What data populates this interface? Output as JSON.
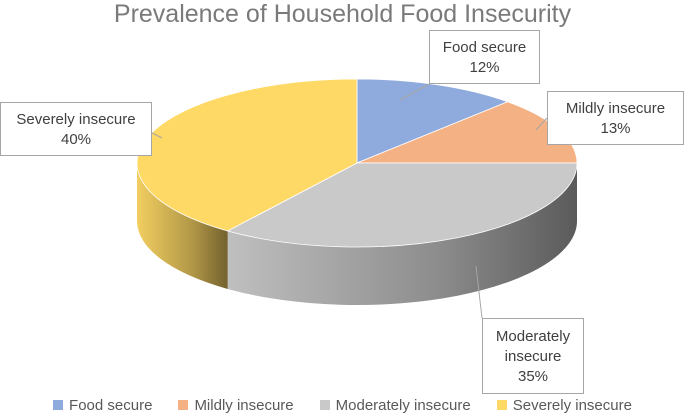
{
  "chart_data": {
    "type": "pie",
    "title": "Prevalence of Household Food Insecurity",
    "categories": [
      "Food secure",
      "Mildly insecure",
      "Moderately insecure",
      "Severely insecure"
    ],
    "values": [
      12,
      13,
      35,
      40
    ],
    "value_labels": [
      "12%",
      "13%",
      "35%",
      "40%"
    ],
    "callout_lines": [
      [
        "Food secure",
        "12%"
      ],
      [
        "Mildly insecure",
        "13%"
      ],
      [
        "Moderately",
        "insecure",
        "35%"
      ],
      [
        "Severely insecure",
        "40%"
      ]
    ],
    "colors": [
      "#8faadc",
      "#f4b183",
      "#c9c9c9",
      "#ffd966"
    ],
    "legend_position": "bottom",
    "style": "3d"
  }
}
